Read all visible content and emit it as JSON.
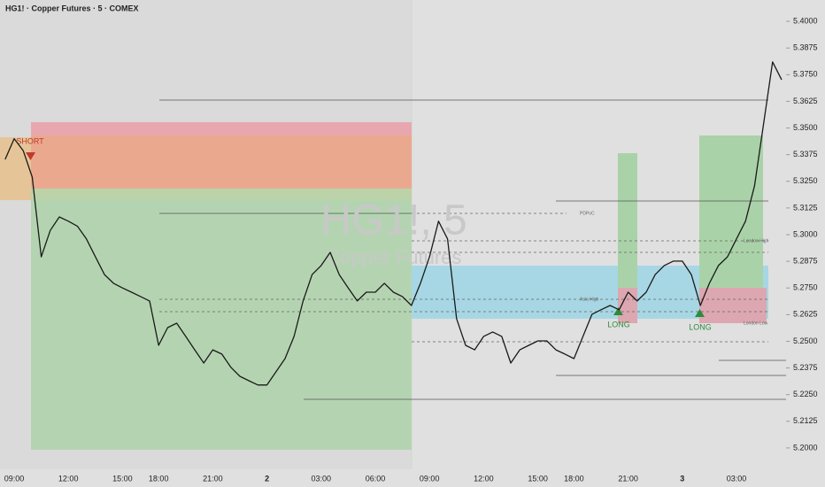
{
  "chart_data": {
    "type": "line",
    "title": "HG1! · Copper Futures · 5 · COMEX",
    "watermark": "HG1!, 5",
    "watermark_subtitle": "Copper Futures",
    "annotations": {
      "short": "SHORT",
      "long_1": "LONG",
      "long_2": "LONG",
      "pdpoc": "PDPoC",
      "asia_high": "Asia High",
      "london_high": "London High",
      "london_low": "London Low"
    },
    "categories": [
      null,
      "09:00",
      null,
      null,
      null,
      null,
      null,
      "12:00",
      null,
      null,
      null,
      null,
      null,
      "15:00",
      null,
      null,
      null,
      "18:00",
      null,
      null,
      null,
      null,
      null,
      "21:00",
      null,
      null,
      null,
      null,
      null,
      "2",
      null,
      null,
      null,
      null,
      null,
      "03:00",
      null,
      null,
      null,
      null,
      null,
      "06:00",
      null,
      null,
      null,
      null,
      null,
      "09:00",
      null,
      null,
      null,
      null,
      null,
      "12:00",
      null,
      null,
      null,
      null,
      null,
      "15:00",
      null,
      null,
      null,
      "18:00",
      null,
      null,
      null,
      null,
      null,
      "21:00",
      null,
      null,
      null,
      null,
      null,
      "3",
      null,
      null,
      null,
      null,
      null,
      "03:00",
      null,
      null,
      null,
      null,
      null
    ],
    "series": [
      {
        "name": "HG1!",
        "color": "#1a1a1a",
        "values": [
          5.3353,
          5.345,
          5.3394,
          5.327,
          5.2896,
          5.302,
          5.3083,
          5.3063,
          5.304,
          5.298,
          5.2896,
          5.2813,
          5.2772,
          5.275,
          5.273,
          5.271,
          5.2689,
          5.2481,
          5.2564,
          5.2585,
          5.2523,
          5.246,
          5.2398,
          5.246,
          5.244,
          5.2378,
          5.2336,
          5.2315,
          5.2295,
          5.2295,
          5.2357,
          5.2419,
          5.2523,
          5.2689,
          5.2813,
          5.2855,
          5.2917,
          5.2813,
          5.275,
          5.2689,
          5.273,
          5.273,
          5.2772,
          5.273,
          5.271,
          5.2668,
          5.2772,
          5.2896,
          5.3063,
          5.298,
          5.2606,
          5.2481,
          5.246,
          5.2523,
          5.2544,
          5.2523,
          5.2398,
          5.246,
          5.2481,
          5.2502,
          5.2502,
          5.246,
          5.244,
          5.2419,
          5.2523,
          5.2627,
          5.2648,
          5.2668,
          5.2648,
          5.273,
          5.2689,
          5.273,
          5.2813,
          5.2855,
          5.2876,
          5.2876,
          5.2813,
          5.2668,
          5.2772,
          5.2855,
          5.2896,
          5.298,
          5.3063,
          5.3229,
          5.3519,
          5.381,
          5.3726
        ]
      }
    ],
    "ylim": [
      5.19,
      5.41
    ],
    "yticks": [
      {
        "value": 5.4,
        "label": "5.4000"
      },
      {
        "value": 5.3875,
        "label": "5.3875"
      },
      {
        "value": 5.375,
        "label": "5.3750"
      },
      {
        "value": 5.3625,
        "label": "5.3625"
      },
      {
        "value": 5.35,
        "label": "5.3500"
      },
      {
        "value": 5.3375,
        "label": "5.3375"
      },
      {
        "value": 5.325,
        "label": "5.3250"
      },
      {
        "value": 5.3125,
        "label": "5.3125"
      },
      {
        "value": 5.3,
        "label": "5.3000"
      },
      {
        "value": 5.2875,
        "label": "5.2875"
      },
      {
        "value": 5.275,
        "label": "5.2750"
      },
      {
        "value": 5.2625,
        "label": "5.2625"
      },
      {
        "value": 5.25,
        "label": "5.2500"
      },
      {
        "value": 5.2375,
        "label": "5.2375"
      },
      {
        "value": 5.225,
        "label": "5.2250"
      },
      {
        "value": 5.2125,
        "label": "5.2125"
      },
      {
        "value": 5.2,
        "label": "5.2000"
      }
    ],
    "grid": false
  }
}
